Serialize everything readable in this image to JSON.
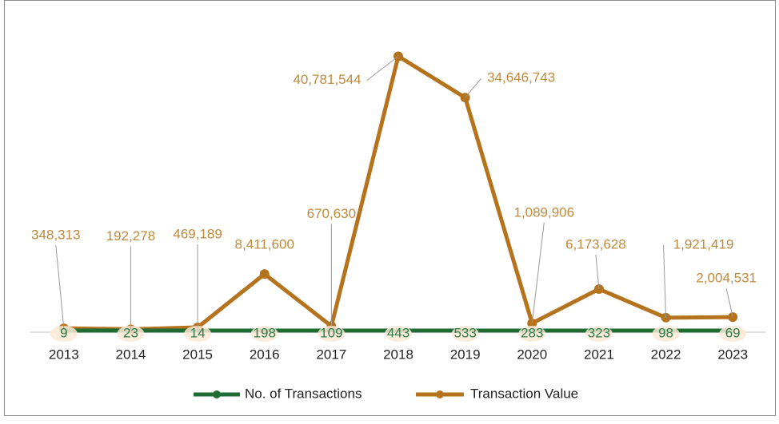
{
  "chart_data": {
    "type": "line",
    "categories": [
      "2013",
      "2014",
      "2015",
      "2016",
      "2017",
      "2018",
      "2019",
      "2020",
      "2021",
      "2022",
      "2023"
    ],
    "series": [
      {
        "name": "No. of Transactions",
        "color": "#1f6b34",
        "values": [
          9,
          23,
          14,
          198,
          109,
          443,
          533,
          283,
          323,
          98,
          69
        ]
      },
      {
        "name": "Transaction Value",
        "color": "#b5731d",
        "values": [
          348313,
          192278,
          469189,
          8411600,
          670630,
          40781544,
          34646743,
          1089906,
          6173628,
          1921419,
          2004531
        ],
        "value_labels": [
          "348,313",
          "192,278",
          "469,189",
          "8,411,600",
          "670,630",
          "40,781,544",
          "34,646,743",
          "1,089,906",
          "6,173,628",
          "1,921,419",
          "2,004,531"
        ]
      }
    ],
    "ylim": [
      0,
      45000000
    ],
    "legend": "bottom"
  }
}
